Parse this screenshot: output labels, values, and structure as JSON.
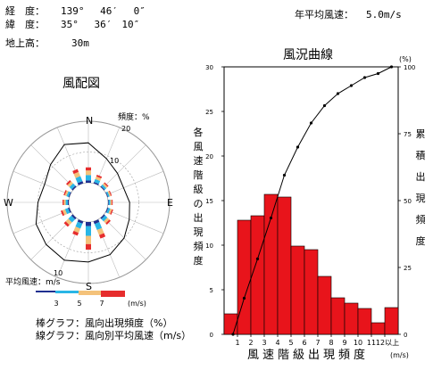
{
  "header": {
    "lon_label": "経　度：",
    "lon_value": "139°　 46′　 0″",
    "lat_label": "緯　度：",
    "lat_value": " 35°　 36′　10″",
    "alt_label": "地上高：",
    "alt_value": "30m",
    "annual_label": "年平均風速：",
    "annual_value": "5.0m/s"
  },
  "rose": {
    "title": "風配図",
    "freq_label": "頻度：%",
    "ring_labels": [
      "10",
      "20",
      "10"
    ],
    "compass": {
      "N": "N",
      "E": "E",
      "S": "S",
      "W": "W"
    },
    "speed_legend_title": "平均風速：m/s",
    "speed_ticks": [
      "3",
      "5",
      "7"
    ],
    "speed_unit": "(m/s)",
    "speed_colors": [
      "#1f2f90",
      "#29b6e6",
      "#f4c27a",
      "#e62d2d"
    ],
    "note_bar": "棒グラフ：風向出現頻度（%）",
    "note_line": "線グラフ：風向別平均風速（m/s）",
    "chart_data": {
      "type": "wind-rose",
      "directions": [
        "N",
        "NNE",
        "NE",
        "ENE",
        "E",
        "ESE",
        "SE",
        "SSE",
        "S",
        "SSW",
        "SW",
        "WSW",
        "W",
        "WNW",
        "NW",
        "NNW"
      ],
      "frequency_pct": [
        5,
        3,
        2,
        1.5,
        1.5,
        2,
        3,
        6,
        9,
        5,
        4,
        3,
        2,
        2,
        3,
        5
      ],
      "mean_speed_ms": [
        6.5,
        4.5,
        3.5,
        3.0,
        3.5,
        4.0,
        5.0,
        6.0,
        6.5,
        7.0,
        6.5,
        6.0,
        5.0,
        4.5,
        5.5,
        7.0
      ],
      "freq_scale_max": 20,
      "speed_scale_max": 10
    }
  },
  "curve": {
    "title": "風況曲線",
    "left_axis_label": "各風速階級の出現頻度",
    "right_axis_label": "累積出現頻度",
    "right_unit": "(%)",
    "x_title": "風速階級出現頻度",
    "x_unit": "(m/s)",
    "left_ticks": [
      "0",
      "5",
      "10",
      "15",
      "20",
      "25",
      "30"
    ],
    "right_ticks": [
      "0",
      "25",
      "50",
      "75",
      "100"
    ],
    "x_ticks": [
      "1",
      "2",
      "3",
      "4",
      "5",
      "6",
      "7",
      "8",
      "9",
      "10",
      "11",
      "12以上"
    ],
    "chart_data": {
      "type": "bar+line",
      "x": [
        "0",
        "1",
        "2",
        "3",
        "4",
        "5",
        "6",
        "7",
        "8",
        "9",
        "10",
        "11",
        "12以上"
      ],
      "values": [
        2.3,
        12.8,
        13.3,
        15.7,
        15.4,
        9.9,
        9.5,
        6.5,
        4.1,
        3.5,
        2.9,
        1.3,
        3.0
      ],
      "cumulative_pct": [
        0,
        13.5,
        28.2,
        43.5,
        59.5,
        70.0,
        79.0,
        85.5,
        90.0,
        93.0,
        96.0,
        97.5,
        100
      ],
      "ylim": [
        0,
        30
      ],
      "y2lim": [
        0,
        100
      ],
      "bar_color": "#e8141b"
    }
  }
}
